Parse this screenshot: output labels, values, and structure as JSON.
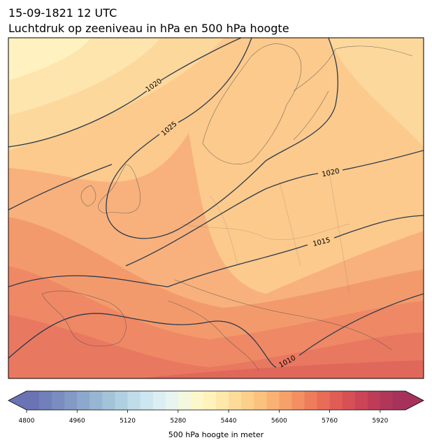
{
  "map": {
    "title": "15-09-1821 12 UTC",
    "subtitle": "Luchtdruk op zeeniveau in hPa en 500 hPa hoogte",
    "isobar_labels": [
      1020,
      1025,
      1020,
      1015,
      1010
    ],
    "colorbar": {
      "label": "500 hPa hoogte in meter",
      "lim": [
        4800,
        6000
      ],
      "ticks": [
        4800,
        4960,
        5120,
        5280,
        5440,
        5600,
        5760,
        5920
      ],
      "colors": [
        "#6a73b4",
        "#717fba",
        "#7a8cc0",
        "#8399c6",
        "#8ca8cc",
        "#97b6d3",
        "#a3c3da",
        "#b0d0e2",
        "#bfdcea",
        "#cde6ef",
        "#dbeef3",
        "#e8f4f0",
        "#f3f8df",
        "#fcf8cc",
        "#fff2bb",
        "#fee8aa",
        "#fddc9a",
        "#fcd08b",
        "#fbc27e",
        "#f9b273",
        "#f7a16a",
        "#f38f62",
        "#ee7d5b",
        "#e86c57",
        "#e05d55",
        "#d65055",
        "#cb4556",
        "#be3c58",
        "#b0365a",
        "#a6325b"
      ]
    }
  }
}
